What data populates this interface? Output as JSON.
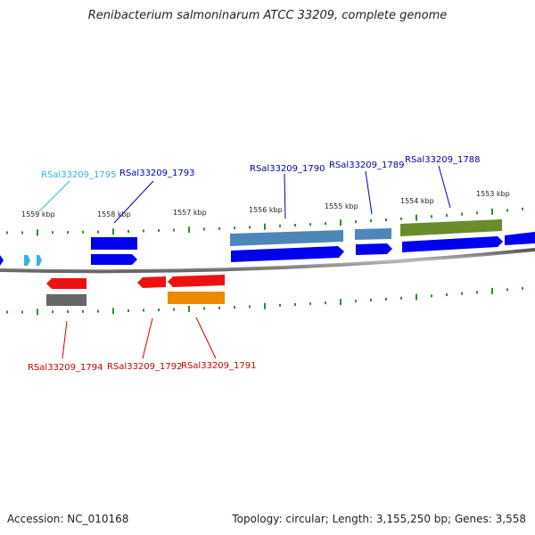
{
  "title": "Renibacterium salmoninarum ATCC 33209, complete genome",
  "footer": {
    "accession": "Accession: NC_010168",
    "topology": "Topology: circular; Length: 3,155,250 bp; Genes: 3,558"
  },
  "ticks": [
    "1559 kbp",
    "1558 kbp",
    "1557 kbp",
    "1556 kbp",
    "1555 kbp",
    "1554 kbp",
    "1553 kbp"
  ],
  "colors": {
    "backbone": "#8c8c8c",
    "tick": "#2f8f2f",
    "cds": "#0000ee",
    "gene_blue": "#4f86b8",
    "gene_olive": "#6b8c2a",
    "gene_red": "#ee1111",
    "gene_gray": "#666666",
    "gene_orange": "#ee8a00",
    "cyan": "#33b5e0"
  },
  "labels": [
    {
      "text": "RSal33209_1795",
      "color": "#33b5e0"
    },
    {
      "text": "RSal33209_1793",
      "color": "#0000aa"
    },
    {
      "text": "RSal33209_1790",
      "color": "#0000aa"
    },
    {
      "text": "RSal33209_1789",
      "color": "#0000aa"
    },
    {
      "text": "RSal33209_1788",
      "color": "#0000aa"
    },
    {
      "text": "RSal33209_1794",
      "color": "#cc0000"
    },
    {
      "text": "RSal33209_1792",
      "color": "#cc0000"
    },
    {
      "text": "RSal33209_1791",
      "color": "#cc0000"
    }
  ]
}
